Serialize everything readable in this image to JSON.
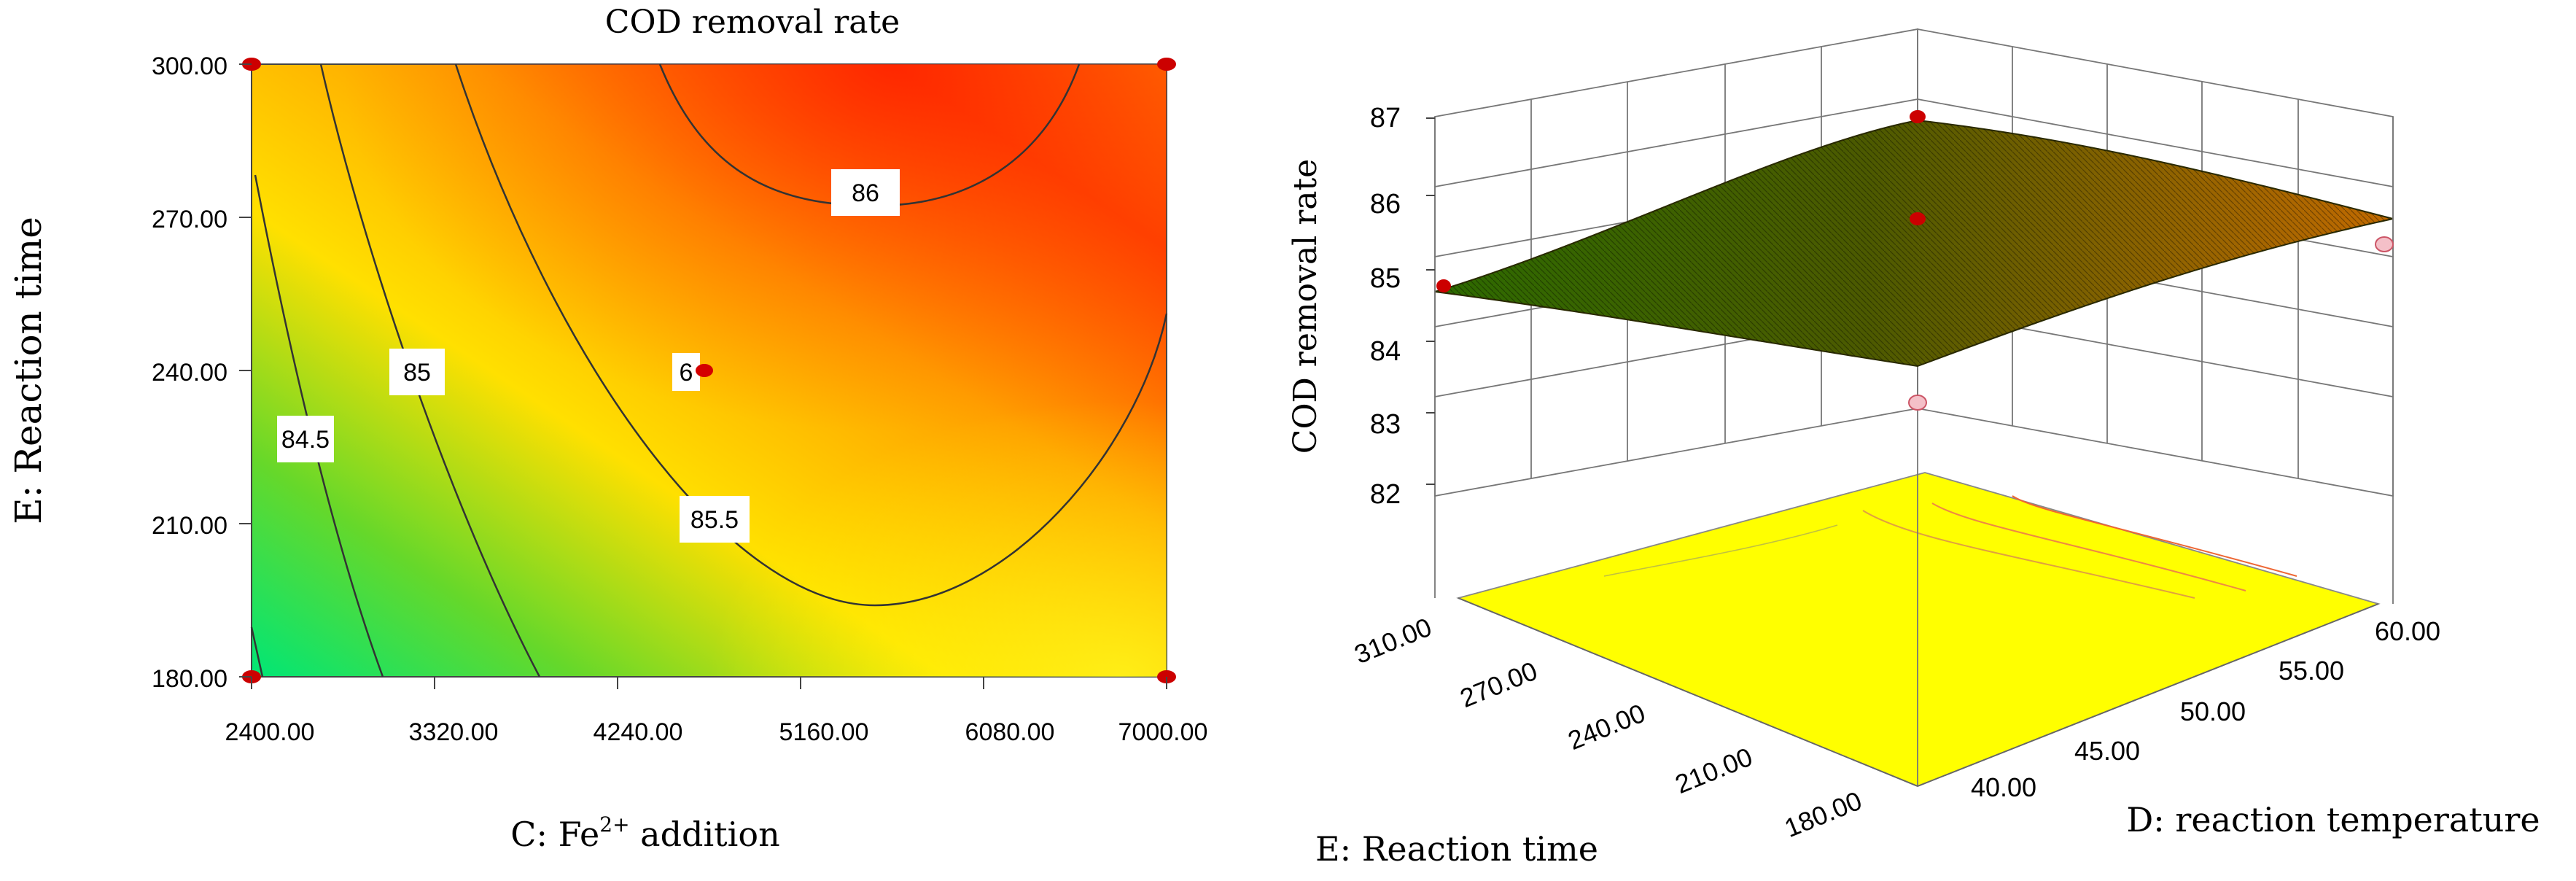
{
  "chart_data": [
    {
      "type": "contour",
      "title": "COD removal rate",
      "xlabel": "C: Fe2+ addition",
      "xlabel_base": "C: Fe",
      "xlabel_sup": "2+",
      "xlabel_tail": " addition",
      "ylabel": "E: Reaction time",
      "xlim": [
        2400,
        7000
      ],
      "ylim": [
        180,
        300
      ],
      "x_ticks": [
        "2400.00",
        "3320.00",
        "4240.00",
        "5160.00",
        "6080.00",
        "7000.00"
      ],
      "y_ticks": [
        "180.00",
        "210.00",
        "240.00",
        "270.00",
        "300.00"
      ],
      "contour_labels": [
        "84.5",
        "85",
        "85.5",
        "86"
      ],
      "center_point_label": "6",
      "colors": {
        "low": "#00e676",
        "mid": "#ffff00",
        "high": "#ff2a00"
      }
    },
    {
      "type": "surface3d",
      "zlabel": "COD removal rate",
      "xlabel": "E: Reaction time",
      "ylabel": "D: reaction temperature",
      "z_ticks": [
        "82",
        "83",
        "84",
        "85",
        "86",
        "87"
      ],
      "x_ticks": [
        "180.00",
        "210.00",
        "240.00",
        "270.00",
        "310.00"
      ],
      "y_ticks": [
        "40.00",
        "45.00",
        "50.00",
        "55.00",
        "60.00"
      ],
      "zlim": [
        82,
        87
      ],
      "colors": {
        "surface_low": "#2a7a00",
        "surface_high": "#d85a00",
        "floor": "#ffff00"
      }
    }
  ]
}
